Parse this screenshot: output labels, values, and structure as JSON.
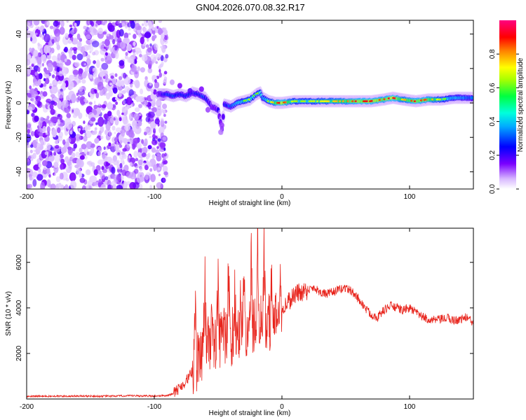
{
  "title": "GN04.2026.070.08.32.R17",
  "chart_data": [
    {
      "type": "heatmap",
      "title": "GN04.2026.070.08.32.R17",
      "xlabel": "Height of straight line (km)",
      "ylabel": "Frequency (Hz)",
      "xlim": [
        -200,
        150
      ],
      "ylim": [
        -50,
        48
      ],
      "xticks": [
        -200,
        -100,
        0,
        100
      ],
      "yticks": [
        -40,
        -20,
        0,
        20,
        40
      ],
      "colorbar": {
        "label": "Normalized spectral amplitude",
        "range": [
          0,
          1
        ],
        "ticks": [
          0.0,
          0.2,
          0.4,
          0.6,
          0.8
        ]
      },
      "noise_region_x": [
        -200,
        -90
      ],
      "ridge": [
        {
          "x": -97,
          "y": 5,
          "a": 0.2
        },
        {
          "x": -90,
          "y": 5,
          "a": 0.35
        },
        {
          "x": -85,
          "y": 4,
          "a": 0.4
        },
        {
          "x": -80,
          "y": 5,
          "a": 0.3
        },
        {
          "x": -75,
          "y": 4,
          "a": 0.35
        },
        {
          "x": -70,
          "y": 6,
          "a": 0.3
        },
        {
          "x": -65,
          "y": 5,
          "a": 0.35
        },
        {
          "x": -60,
          "y": 3,
          "a": 0.35
        },
        {
          "x": -55,
          "y": -2,
          "a": 0.2
        },
        {
          "x": -50,
          "y": -4,
          "a": 0.25
        },
        {
          "x": -47,
          "y": -15,
          "a": 0.15
        },
        {
          "x": -45,
          "y": -1,
          "a": 0.3
        },
        {
          "x": -40,
          "y": -2,
          "a": 0.4
        },
        {
          "x": -35,
          "y": 0,
          "a": 0.5
        },
        {
          "x": -30,
          "y": 1,
          "a": 0.55
        },
        {
          "x": -25,
          "y": 2,
          "a": 0.6
        },
        {
          "x": -20,
          "y": 5,
          "a": 0.55
        },
        {
          "x": -17,
          "y": 6,
          "a": 0.6
        },
        {
          "x": -15,
          "y": 3,
          "a": 0.5
        },
        {
          "x": -10,
          "y": 1,
          "a": 0.6
        },
        {
          "x": -5,
          "y": 0,
          "a": 0.75
        },
        {
          "x": 0,
          "y": 0,
          "a": 0.9
        },
        {
          "x": 10,
          "y": 1,
          "a": 0.6
        },
        {
          "x": 20,
          "y": 1,
          "a": 0.6
        },
        {
          "x": 30,
          "y": 1,
          "a": 0.65
        },
        {
          "x": 40,
          "y": 1,
          "a": 0.7
        },
        {
          "x": 50,
          "y": 1,
          "a": 0.75
        },
        {
          "x": 60,
          "y": 1,
          "a": 0.85
        },
        {
          "x": 70,
          "y": 1,
          "a": 0.85
        },
        {
          "x": 80,
          "y": 2,
          "a": 0.8
        },
        {
          "x": 87,
          "y": 3,
          "a": 0.9
        },
        {
          "x": 95,
          "y": 2,
          "a": 0.7
        },
        {
          "x": 105,
          "y": 1,
          "a": 0.85
        },
        {
          "x": 115,
          "y": 2,
          "a": 0.8
        },
        {
          "x": 125,
          "y": 2,
          "a": 0.6
        },
        {
          "x": 135,
          "y": 3,
          "a": 0.5
        },
        {
          "x": 145,
          "y": 3,
          "a": 0.45
        },
        {
          "x": 150,
          "y": 3,
          "a": 0.4
        }
      ]
    },
    {
      "type": "line",
      "xlabel": "Height of straight line (km)",
      "ylabel": "SNR (10 * v/v)",
      "xlim": [
        -200,
        150
      ],
      "ylim": [
        0,
        7500
      ],
      "xticks": [
        -200,
        -100,
        0,
        100
      ],
      "yticks": [
        2000,
        4000,
        6000
      ],
      "color": "#e8231b",
      "series": [
        {
          "name": "SNR",
          "x": [
            -200,
            -180,
            -160,
            -140,
            -120,
            -100,
            -90,
            -85,
            -80,
            -75,
            -70,
            -65,
            -60,
            -55,
            -50,
            -45,
            -40,
            -35,
            -30,
            -25,
            -20,
            -15,
            -10,
            -5,
            0,
            5,
            10,
            15,
            20,
            25,
            30,
            35,
            40,
            45,
            50,
            55,
            60,
            65,
            70,
            75,
            80,
            85,
            90,
            95,
            100,
            105,
            110,
            115,
            120,
            125,
            130,
            135,
            140,
            145,
            150
          ],
          "y": [
            120,
            120,
            130,
            120,
            140,
            130,
            150,
            250,
            500,
            800,
            1200,
            1800,
            2200,
            2400,
            2500,
            2600,
            2700,
            2900,
            3000,
            3100,
            3200,
            3300,
            3400,
            3500,
            3900,
            4300,
            4600,
            4700,
            4800,
            4900,
            4700,
            4600,
            4700,
            4800,
            4900,
            4700,
            4400,
            4000,
            3700,
            3600,
            3900,
            4100,
            4000,
            3900,
            4000,
            3800,
            3600,
            3500,
            3450,
            3500,
            3550,
            3450,
            3500,
            3600,
            3300
          ]
        }
      ],
      "spikes": [
        {
          "x": -68,
          "y": 4000
        },
        {
          "x": -60,
          "y": 4300
        },
        {
          "x": -55,
          "y": 3800
        },
        {
          "x": -50,
          "y": 5000
        },
        {
          "x": -42,
          "y": 5400
        },
        {
          "x": -37,
          "y": 4900
        },
        {
          "x": -30,
          "y": 5600
        },
        {
          "x": -24,
          "y": 6200
        },
        {
          "x": -19,
          "y": 7500
        },
        {
          "x": -14,
          "y": 6000
        },
        {
          "x": -8,
          "y": 5000
        },
        {
          "x": -3,
          "y": 4600
        }
      ]
    }
  ]
}
